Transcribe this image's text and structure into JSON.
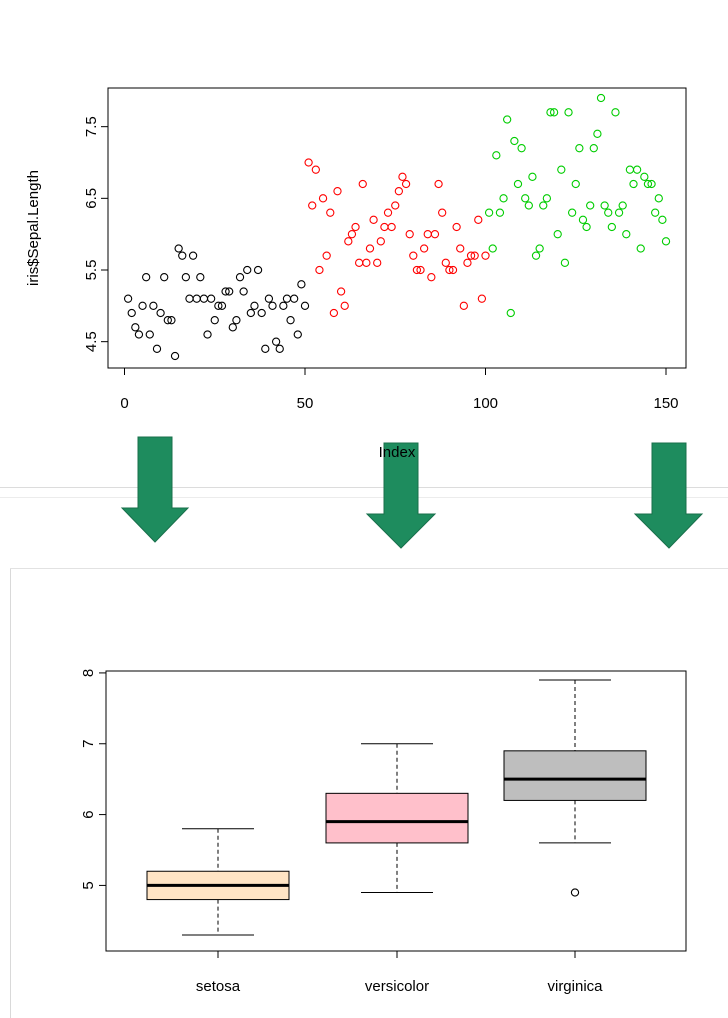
{
  "chart_data": [
    {
      "type": "scatter",
      "xlabel": "Index",
      "ylabel": "iris$Sepal.Length",
      "xlim": [
        0,
        150
      ],
      "ylim": [
        4.3,
        7.9
      ],
      "x_ticks": [
        "0",
        "50",
        "100",
        "150"
      ],
      "y_ticks": [
        "4.5",
        "5.5",
        "6.5",
        "7.5"
      ],
      "grid": false,
      "series": [
        {
          "color": "#000000",
          "x_start": 1,
          "values": [
            5.1,
            4.9,
            4.7,
            4.6,
            5.0,
            5.4,
            4.6,
            5.0,
            4.4,
            4.9,
            5.4,
            4.8,
            4.8,
            4.3,
            5.8,
            5.7,
            5.4,
            5.1,
            5.7,
            5.1,
            5.4,
            5.1,
            4.6,
            5.1,
            4.8,
            5.0,
            5.0,
            5.2,
            5.2,
            4.7,
            4.8,
            5.4,
            5.2,
            5.5,
            4.9,
            5.0,
            5.5,
            4.9,
            4.4,
            5.1,
            5.0,
            4.5,
            4.4,
            5.0,
            5.1,
            4.8,
            5.1,
            4.6,
            5.3,
            5.0
          ]
        },
        {
          "color": "#ff0000",
          "x_start": 51,
          "values": [
            7.0,
            6.4,
            6.9,
            5.5,
            6.5,
            5.7,
            6.3,
            4.9,
            6.6,
            5.2,
            5.0,
            5.9,
            6.0,
            6.1,
            5.6,
            6.7,
            5.6,
            5.8,
            6.2,
            5.6,
            5.9,
            6.1,
            6.3,
            6.1,
            6.4,
            6.6,
            6.8,
            6.7,
            6.0,
            5.7,
            5.5,
            5.5,
            5.8,
            6.0,
            5.4,
            6.0,
            6.7,
            6.3,
            5.6,
            5.5,
            5.5,
            6.1,
            5.8,
            5.0,
            5.6,
            5.7,
            5.7,
            6.2,
            5.1,
            5.7
          ]
        },
        {
          "color": "#00cd00",
          "x_start": 101,
          "values": [
            6.3,
            5.8,
            7.1,
            6.3,
            6.5,
            7.6,
            4.9,
            7.3,
            6.7,
            7.2,
            6.5,
            6.4,
            6.8,
            5.7,
            5.8,
            6.4,
            6.5,
            7.7,
            7.7,
            6.0,
            6.9,
            5.6,
            7.7,
            6.3,
            6.7,
            7.2,
            6.2,
            6.1,
            6.4,
            7.2,
            7.4,
            7.9,
            6.4,
            6.3,
            6.1,
            7.7,
            6.3,
            6.4,
            6.0,
            6.9,
            6.7,
            6.9,
            5.8,
            6.8,
            6.7,
            6.7,
            6.3,
            6.5,
            6.2,
            5.9
          ]
        }
      ]
    },
    {
      "type": "box",
      "categories": [
        "setosa",
        "versicolor",
        "virginica"
      ],
      "ylim": [
        4.3,
        7.9
      ],
      "y_ticks": [
        "5",
        "6",
        "7",
        "8"
      ],
      "grid": false,
      "boxes": [
        {
          "name": "setosa",
          "whisker_low": 4.3,
          "q1": 4.8,
          "median": 5.0,
          "q3": 5.2,
          "whisker_high": 5.8,
          "outliers": [],
          "color": "#ffe4c4"
        },
        {
          "name": "versicolor",
          "whisker_low": 4.9,
          "q1": 5.6,
          "median": 5.9,
          "q3": 6.3,
          "whisker_high": 7.0,
          "outliers": [],
          "color": "#ffc0cb"
        },
        {
          "name": "virginica",
          "whisker_low": 5.6,
          "q1": 6.2,
          "median": 6.5,
          "q3": 6.9,
          "whisker_high": 7.9,
          "outliers": [
            4.9
          ],
          "color": "#bebebe"
        }
      ]
    }
  ],
  "arrows": {
    "color": "#1e8c5e",
    "icon": "arrow-down-icon",
    "count": 3
  }
}
